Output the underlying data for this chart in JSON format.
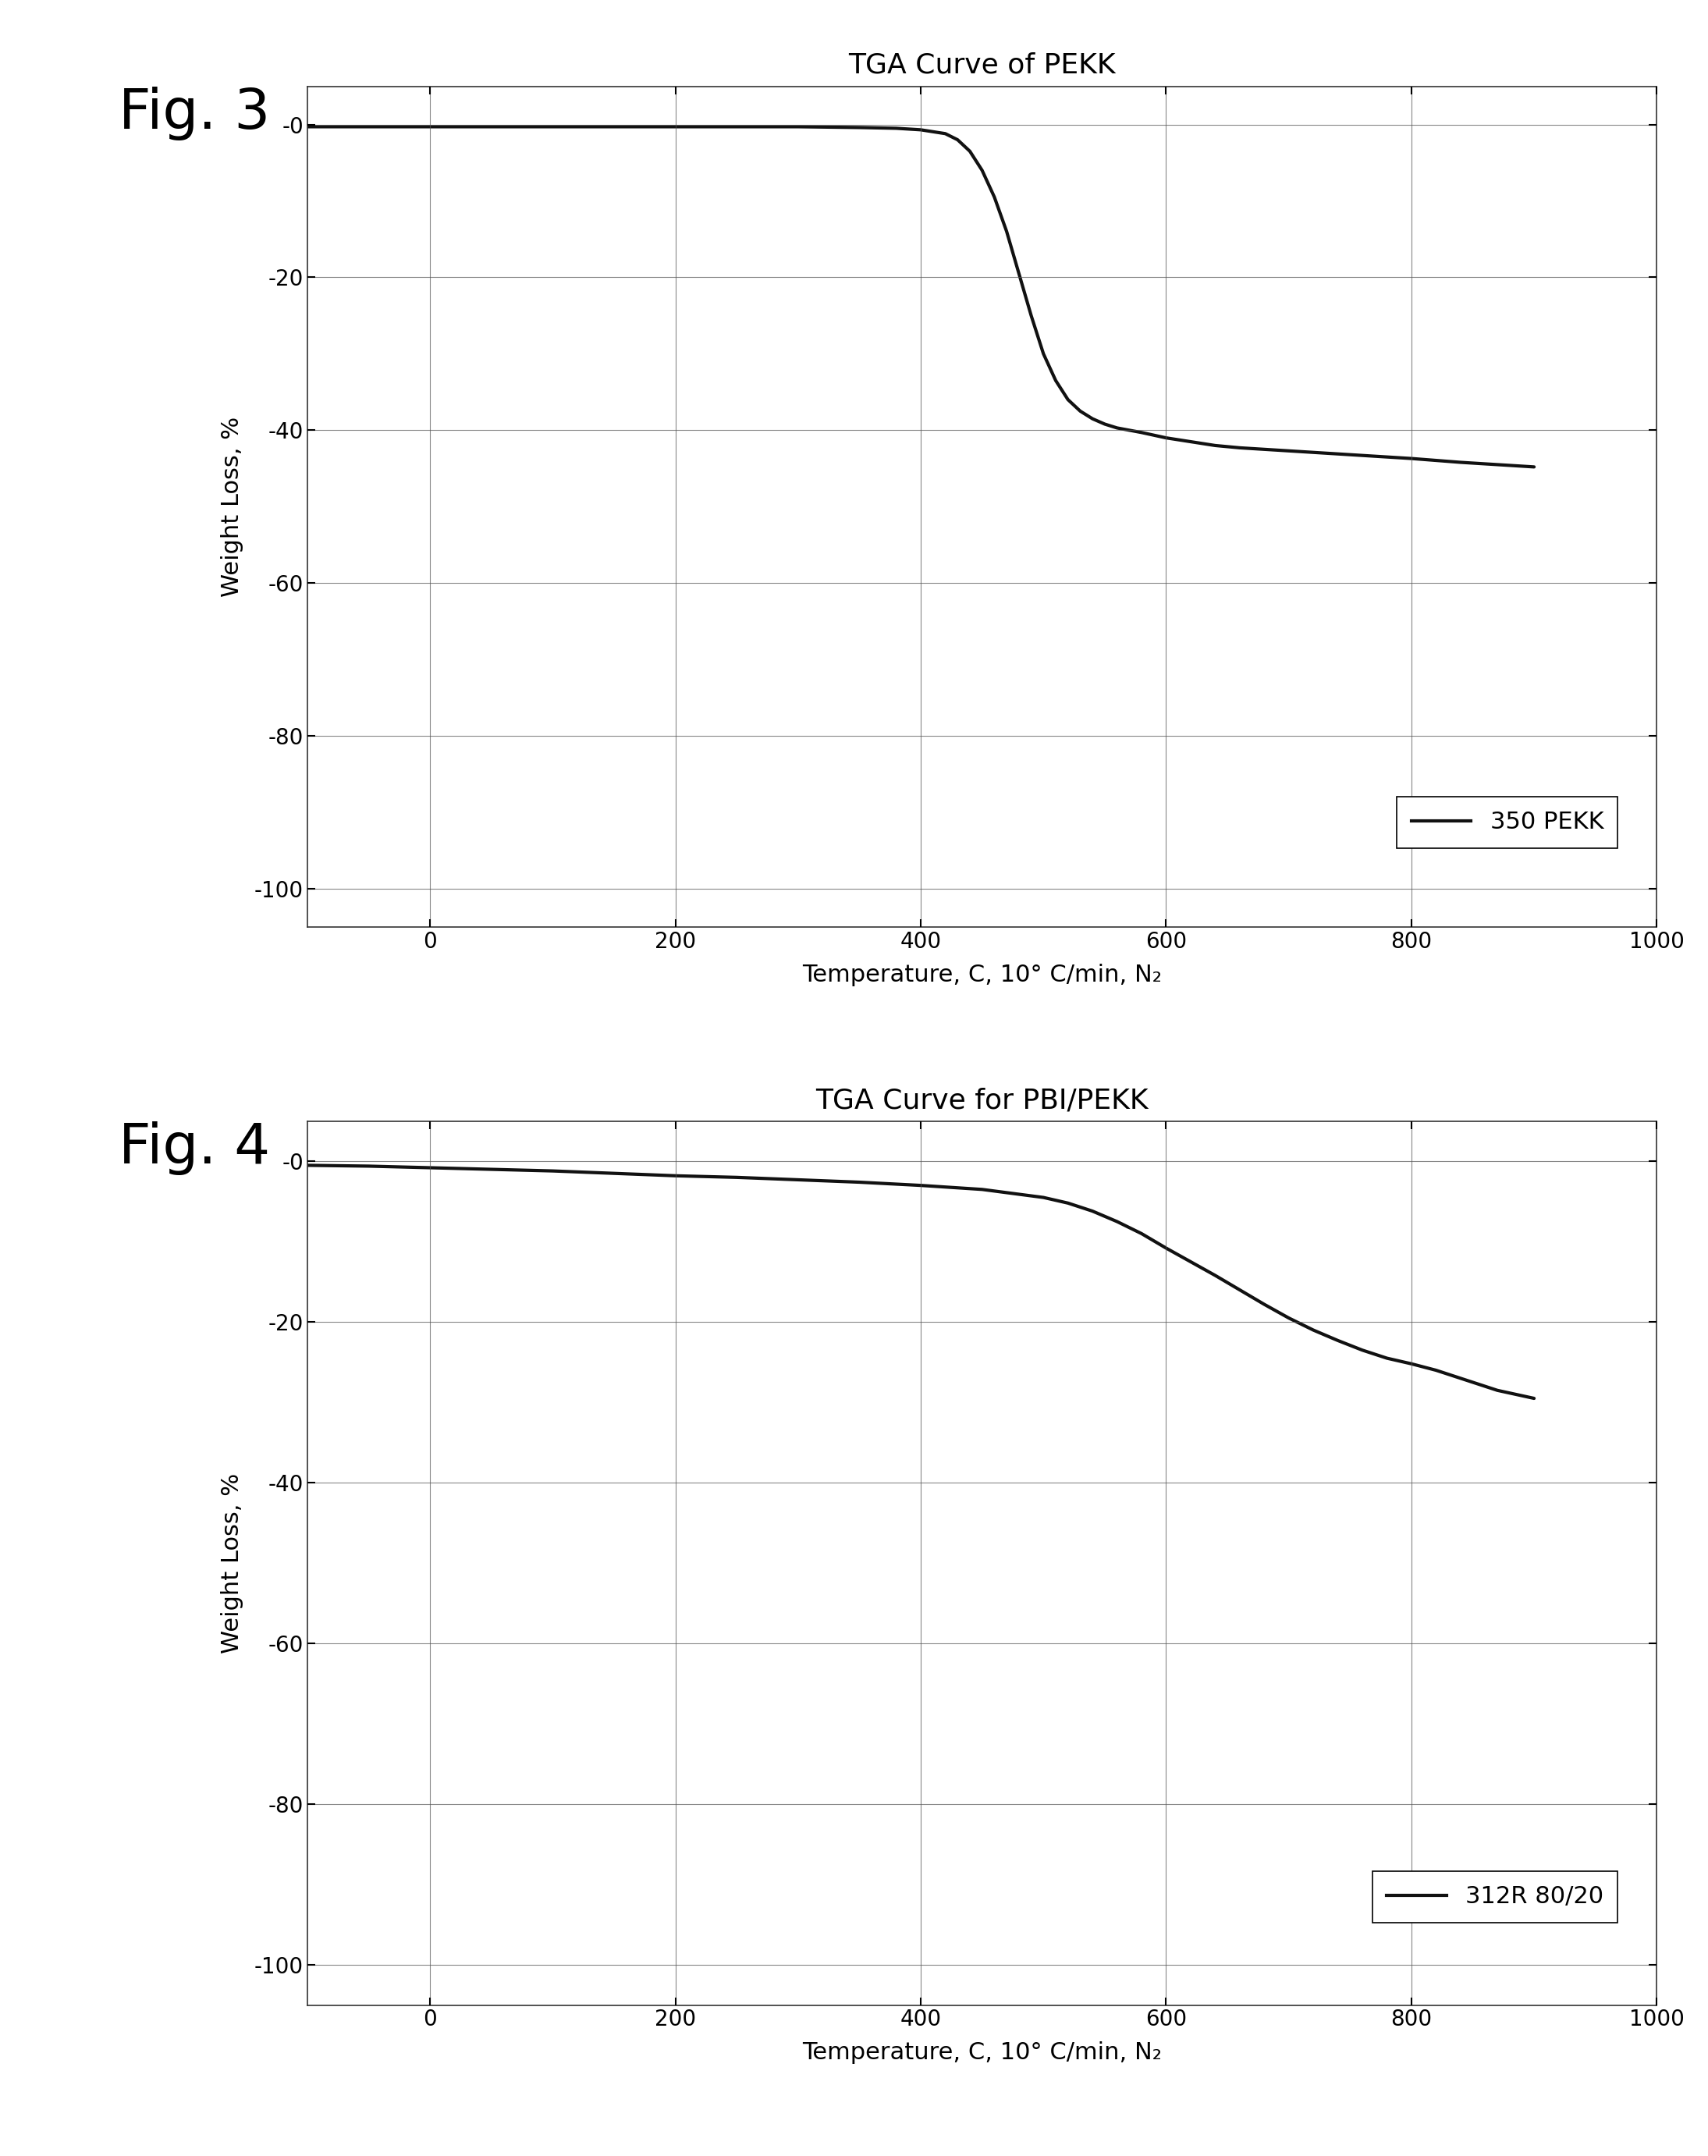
{
  "fig3": {
    "title": "TGA Curve of PEKK",
    "xlabel": "Temperature, C, 10° C/min, N₂",
    "ylabel": "Weight Loss, %",
    "xlim": [
      -100,
      1000
    ],
    "ylim": [
      -105,
      5
    ],
    "xticks": [
      0,
      200,
      400,
      600,
      800,
      1000
    ],
    "yticks": [
      0,
      -20,
      -40,
      -60,
      -80,
      -100
    ],
    "legend_label": "350 PEKK",
    "fig_label": "Fig. 3",
    "curve_x": [
      -100,
      -50,
      0,
      50,
      100,
      150,
      200,
      250,
      300,
      350,
      380,
      400,
      420,
      430,
      440,
      450,
      460,
      470,
      480,
      490,
      500,
      510,
      520,
      530,
      540,
      550,
      560,
      570,
      580,
      600,
      620,
      640,
      660,
      680,
      700,
      720,
      740,
      760,
      800,
      840,
      900
    ],
    "curve_y": [
      -0.3,
      -0.3,
      -0.3,
      -0.3,
      -0.3,
      -0.3,
      -0.3,
      -0.3,
      -0.3,
      -0.4,
      -0.5,
      -0.7,
      -1.2,
      -2.0,
      -3.5,
      -6.0,
      -9.5,
      -14.0,
      -19.5,
      -25.0,
      -30.0,
      -33.5,
      -36.0,
      -37.5,
      -38.5,
      -39.2,
      -39.7,
      -40.0,
      -40.3,
      -41.0,
      -41.5,
      -42.0,
      -42.3,
      -42.5,
      -42.7,
      -42.9,
      -43.1,
      -43.3,
      -43.7,
      -44.2,
      -44.8
    ]
  },
  "fig4": {
    "title": "TGA Curve for PBI/PEKK",
    "xlabel": "Temperature, C, 10° C/min, N₂",
    "ylabel": "Weight Loss, %",
    "xlim": [
      -100,
      1000
    ],
    "ylim": [
      -105,
      5
    ],
    "xticks": [
      0,
      200,
      400,
      600,
      800,
      1000
    ],
    "yticks": [
      0,
      -20,
      -40,
      -60,
      -80,
      -100
    ],
    "legend_label": "312R 80/20",
    "fig_label": "Fig. 4",
    "curve_x": [
      -100,
      -50,
      0,
      50,
      100,
      150,
      200,
      250,
      300,
      350,
      400,
      450,
      500,
      520,
      540,
      560,
      580,
      600,
      620,
      640,
      660,
      680,
      700,
      720,
      740,
      760,
      780,
      800,
      820,
      840,
      870,
      900
    ],
    "curve_y": [
      -0.5,
      -0.6,
      -0.8,
      -1.0,
      -1.2,
      -1.5,
      -1.8,
      -2.0,
      -2.3,
      -2.6,
      -3.0,
      -3.5,
      -4.5,
      -5.2,
      -6.2,
      -7.5,
      -9.0,
      -10.8,
      -12.5,
      -14.2,
      -16.0,
      -17.8,
      -19.5,
      -21.0,
      -22.3,
      -23.5,
      -24.5,
      -25.2,
      -26.0,
      -27.0,
      -28.5,
      -29.5
    ]
  },
  "background_color": "#ffffff",
  "line_color": "#111111",
  "line_width": 3.0,
  "grid_color": "#555555",
  "fig_label_fontsize": 52,
  "title_fontsize": 26,
  "axis_label_fontsize": 22,
  "tick_fontsize": 20,
  "legend_fontsize": 22
}
